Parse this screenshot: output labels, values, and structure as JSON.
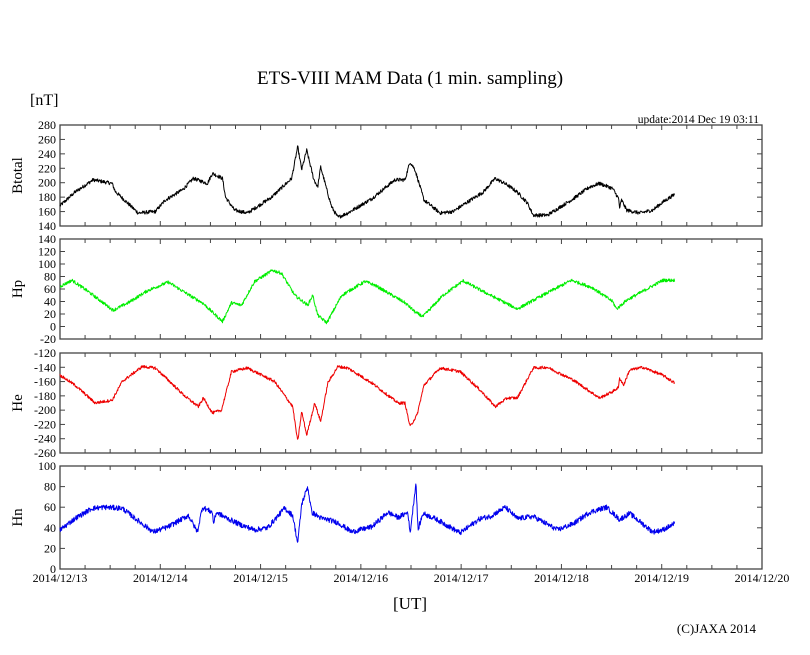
{
  "chart_data": {
    "type": "line",
    "title": "ETS-VIII MAM Data (1 min. sampling)",
    "unit_label": "[nT]",
    "update_label": "update:2014 Dec 19 03:11",
    "xlabel": "[UT]",
    "copyright": "(C)JAXA 2014",
    "x_unit": "days since 2014/12/13 00:00 UT",
    "xlim": [
      0,
      7
    ],
    "x_tick_labels": [
      "2014/12/13",
      "2014/12/14",
      "2014/12/15",
      "2014/12/16",
      "2014/12/17",
      "2014/12/18",
      "2014/12/19",
      "2014/12/20"
    ],
    "x_minor_tick_step": 0.25,
    "grid": false,
    "panels": [
      {
        "name": "Btotal",
        "ylabel": "Btotal",
        "color": "#000000",
        "ylim": [
          140,
          280
        ],
        "y_tick_step": 20,
        "noise": 2.5,
        "points": [
          [
            0,
            168
          ],
          [
            0.15,
            187
          ],
          [
            0.33,
            204
          ],
          [
            0.52,
            199
          ],
          [
            0.55,
            188
          ],
          [
            0.78,
            158
          ],
          [
            0.95,
            160
          ],
          [
            1.05,
            176
          ],
          [
            1.22,
            190
          ],
          [
            1.33,
            206
          ],
          [
            1.47,
            199
          ],
          [
            1.52,
            213
          ],
          [
            1.62,
            206
          ],
          [
            1.65,
            180
          ],
          [
            1.74,
            162
          ],
          [
            1.87,
            158
          ],
          [
            2.11,
            180
          ],
          [
            2.31,
            206
          ],
          [
            2.37,
            250
          ],
          [
            2.41,
            218
          ],
          [
            2.46,
            245
          ],
          [
            2.53,
            205
          ],
          [
            2.57,
            194
          ],
          [
            2.6,
            222
          ],
          [
            2.66,
            190
          ],
          [
            2.71,
            166
          ],
          [
            2.77,
            152
          ],
          [
            2.87,
            158
          ],
          [
            3.11,
            178
          ],
          [
            3.34,
            204
          ],
          [
            3.44,
            204
          ],
          [
            3.49,
            229
          ],
          [
            3.54,
            218
          ],
          [
            3.63,
            176
          ],
          [
            3.79,
            158
          ],
          [
            3.92,
            160
          ],
          [
            4.06,
            173
          ],
          [
            4.22,
            187
          ],
          [
            4.34,
            206
          ],
          [
            4.46,
            197
          ],
          [
            4.56,
            187
          ],
          [
            4.66,
            172
          ],
          [
            4.72,
            155
          ],
          [
            4.86,
            155
          ],
          [
            5.12,
            178
          ],
          [
            5.28,
            194
          ],
          [
            5.38,
            199
          ],
          [
            5.51,
            192
          ],
          [
            5.57,
            178
          ],
          [
            5.58,
            165
          ],
          [
            5.6,
            176
          ],
          [
            5.65,
            162
          ],
          [
            5.78,
            158
          ],
          [
            5.91,
            162
          ],
          [
            6.01,
            173
          ],
          [
            6.13,
            184
          ]
        ]
      },
      {
        "name": "Hp",
        "ylabel": "Hp",
        "color": "#00ee00",
        "ylim": [
          -20,
          140
        ],
        "y_tick_step": 20,
        "noise": 2.5,
        "points": [
          [
            0,
            64
          ],
          [
            0.12,
            74
          ],
          [
            0.28,
            56
          ],
          [
            0.53,
            26
          ],
          [
            0.68,
            38
          ],
          [
            0.88,
            58
          ],
          [
            1.08,
            71
          ],
          [
            1.32,
            47
          ],
          [
            1.42,
            38
          ],
          [
            1.62,
            8
          ],
          [
            1.71,
            38
          ],
          [
            1.81,
            34
          ],
          [
            1.94,
            72
          ],
          [
            2.12,
            90
          ],
          [
            2.21,
            85
          ],
          [
            2.34,
            50
          ],
          [
            2.47,
            34
          ],
          [
            2.52,
            50
          ],
          [
            2.57,
            18
          ],
          [
            2.66,
            6
          ],
          [
            2.81,
            50
          ],
          [
            3.04,
            72
          ],
          [
            3.14,
            66
          ],
          [
            3.44,
            38
          ],
          [
            3.55,
            22
          ],
          [
            3.62,
            16
          ],
          [
            3.82,
            50
          ],
          [
            4.02,
            73
          ],
          [
            4.22,
            56
          ],
          [
            4.56,
            28
          ],
          [
            4.79,
            48
          ],
          [
            5.1,
            74
          ],
          [
            5.31,
            62
          ],
          [
            5.51,
            40
          ],
          [
            5.55,
            28
          ],
          [
            5.65,
            42
          ],
          [
            6.01,
            74
          ],
          [
            6.13,
            74
          ]
        ]
      },
      {
        "name": "He",
        "ylabel": "He",
        "color": "#ee0000",
        "ylim": [
          -260,
          -120
        ],
        "y_tick_step": 20,
        "noise": 2,
        "points": [
          [
            0,
            -151
          ],
          [
            0.15,
            -165
          ],
          [
            0.35,
            -190
          ],
          [
            0.52,
            -186
          ],
          [
            0.62,
            -160
          ],
          [
            0.82,
            -139
          ],
          [
            0.95,
            -141
          ],
          [
            1.08,
            -158
          ],
          [
            1.25,
            -181
          ],
          [
            1.38,
            -195
          ],
          [
            1.43,
            -183
          ],
          [
            1.52,
            -204
          ],
          [
            1.61,
            -200
          ],
          [
            1.71,
            -146
          ],
          [
            1.87,
            -141
          ],
          [
            2.14,
            -160
          ],
          [
            2.32,
            -195
          ],
          [
            2.37,
            -244
          ],
          [
            2.41,
            -202
          ],
          [
            2.46,
            -235
          ],
          [
            2.54,
            -190
          ],
          [
            2.6,
            -216
          ],
          [
            2.67,
            -162
          ],
          [
            2.77,
            -139
          ],
          [
            2.87,
            -141
          ],
          [
            3.11,
            -162
          ],
          [
            3.37,
            -190
          ],
          [
            3.44,
            -190
          ],
          [
            3.49,
            -223
          ],
          [
            3.56,
            -207
          ],
          [
            3.63,
            -165
          ],
          [
            3.79,
            -141
          ],
          [
            3.99,
            -146
          ],
          [
            4.19,
            -172
          ],
          [
            4.34,
            -195
          ],
          [
            4.46,
            -183
          ],
          [
            4.56,
            -183
          ],
          [
            4.72,
            -141
          ],
          [
            4.86,
            -140
          ],
          [
            5.12,
            -158
          ],
          [
            5.38,
            -183
          ],
          [
            5.51,
            -174
          ],
          [
            5.57,
            -168
          ],
          [
            5.58,
            -155
          ],
          [
            5.62,
            -165
          ],
          [
            5.68,
            -144
          ],
          [
            5.81,
            -140
          ],
          [
            6.01,
            -151
          ],
          [
            6.13,
            -162
          ]
        ]
      },
      {
        "name": "Hn",
        "ylabel": "Hn",
        "color": "#0000ee",
        "ylim": [
          0,
          100
        ],
        "y_tick_step": 20,
        "noise": 2.5,
        "points": [
          [
            0,
            38
          ],
          [
            0.15,
            49
          ],
          [
            0.32,
            59
          ],
          [
            0.45,
            60
          ],
          [
            0.62,
            59
          ],
          [
            0.75,
            49
          ],
          [
            0.93,
            36
          ],
          [
            1.08,
            41
          ],
          [
            1.28,
            52
          ],
          [
            1.37,
            36
          ],
          [
            1.42,
            60
          ],
          [
            1.52,
            55
          ],
          [
            1.53,
            44
          ],
          [
            1.56,
            55
          ],
          [
            1.65,
            50
          ],
          [
            1.8,
            43
          ],
          [
            1.94,
            38
          ],
          [
            2.07,
            40
          ],
          [
            2.24,
            59
          ],
          [
            2.32,
            52
          ],
          [
            2.37,
            25
          ],
          [
            2.41,
            63
          ],
          [
            2.47,
            80
          ],
          [
            2.51,
            55
          ],
          [
            2.61,
            49
          ],
          [
            2.67,
            48
          ],
          [
            2.77,
            45
          ],
          [
            2.91,
            36
          ],
          [
            3.11,
            41
          ],
          [
            3.27,
            55
          ],
          [
            3.37,
            50
          ],
          [
            3.47,
            55
          ],
          [
            3.49,
            34
          ],
          [
            3.55,
            84
          ],
          [
            3.57,
            38
          ],
          [
            3.62,
            54
          ],
          [
            3.76,
            48
          ],
          [
            3.99,
            35
          ],
          [
            4.19,
            49
          ],
          [
            4.29,
            51
          ],
          [
            4.44,
            60
          ],
          [
            4.56,
            49
          ],
          [
            4.72,
            51
          ],
          [
            4.96,
            38
          ],
          [
            5.12,
            44
          ],
          [
            5.28,
            55
          ],
          [
            5.45,
            60
          ],
          [
            5.58,
            48
          ],
          [
            5.68,
            54
          ],
          [
            5.91,
            36
          ],
          [
            6.01,
            38
          ],
          [
            6.13,
            44
          ]
        ]
      }
    ]
  }
}
